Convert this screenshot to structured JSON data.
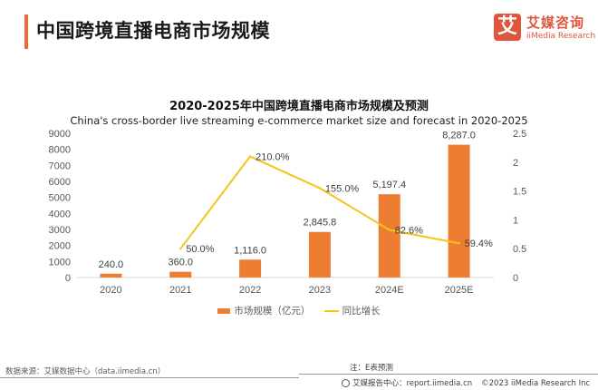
{
  "header": {
    "title": "中国跨境直播电商市场规模",
    "accent_color": "#ee6a3a"
  },
  "logo": {
    "glyph": "艾",
    "name_cn": "艾媒咨询",
    "name_en": "iiMedia Research",
    "color": "#e0563a"
  },
  "chart_data": {
    "type": "bar",
    "title": "2020-2025年中国跨境直播电商市场规模及预测",
    "subtitle": "China's cross-border live streaming e-commerce market size and forecast in 2020-2025",
    "categories": [
      "2020",
      "2021",
      "2022",
      "2023",
      "2024E",
      "2025E"
    ],
    "series": [
      {
        "name": "市场规模（亿元）",
        "type": "bar",
        "axis": "left",
        "color": "#ed7d31",
        "values": [
          240.0,
          360.0,
          1116.0,
          2845.8,
          5197.4,
          8287.0
        ],
        "labels": [
          "240.0",
          "360.0",
          "1,116.0",
          "2,845.8",
          "5,197.4",
          "8,287.0"
        ]
      },
      {
        "name": "同比增长",
        "type": "line",
        "axis": "right",
        "color": "#f5c518",
        "values": [
          null,
          0.5,
          2.1,
          1.55,
          0.826,
          0.594
        ],
        "labels": [
          "",
          "50.0%",
          "210.0%",
          "155.0%",
          "82.6%",
          "59.4%"
        ]
      }
    ],
    "y_left": {
      "min": 0,
      "max": 9000,
      "ticks": [
        "0",
        "1000",
        "2000",
        "3000",
        "4000",
        "5000",
        "6000",
        "7000",
        "8000",
        "9000"
      ]
    },
    "y_right": {
      "min": 0,
      "max": 2.5,
      "ticks": [
        "0",
        "0.5",
        "1",
        "1.5",
        "2",
        "2.5"
      ]
    },
    "grid": false,
    "legend_position": "bottom"
  },
  "legend": {
    "bar_label": "市场规模（亿元）",
    "line_label": "同比增长"
  },
  "footer": {
    "note": "注：E表预测",
    "source": "数据来源：艾媒数据中心（data.iimedia.cn）",
    "report_center": "艾媒报告中心：report.iimedia.cn",
    "copyright": "©2023  iiMedia Research  Inc"
  }
}
